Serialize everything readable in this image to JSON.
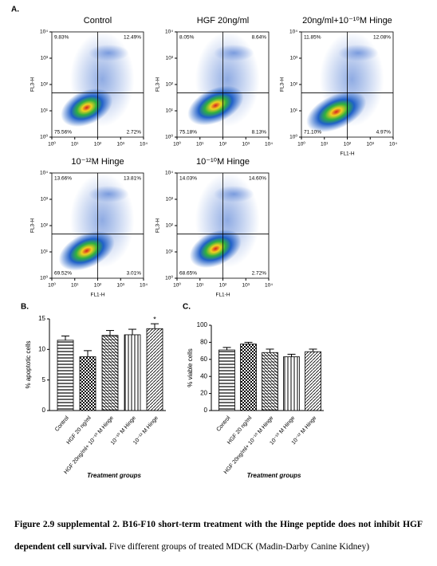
{
  "panel_a": {
    "label": "A.",
    "lim": [
      1,
      10000
    ],
    "log": true,
    "ticks": [
      {
        "value": 1,
        "label": "10⁰"
      },
      {
        "value": 10,
        "label": "10¹"
      },
      {
        "value": 100,
        "label": "10²"
      },
      {
        "value": 1000,
        "label": "10³"
      },
      {
        "value": 10000,
        "label": "10⁴"
      }
    ],
    "plots": [
      {
        "title": "Control",
        "ylabel": "FL3-H",
        "quadrants": [
          "9.83%",
          "12.49%",
          "75.56%",
          "2.72%"
        ]
      },
      {
        "title": "HGF 20ng/ml",
        "ylabel": "FL3-H",
        "quadrants": [
          "8.05%",
          "8.64%",
          "75.18%",
          "8.13%"
        ]
      },
      {
        "title": "20ng/ml+10⁻¹⁰M  Hinge",
        "ylabel": "FL3-H",
        "xlabel": "FL1-H",
        "quadrants": [
          "11.85%",
          "12.08%",
          "71.10%",
          "4.97%"
        ]
      },
      {
        "title": "10⁻¹²M Hinge",
        "ylabel": "FL3-H",
        "xlabel": "FL1-H",
        "quadrants": [
          "13.66%",
          "13.81%",
          "69.52%",
          "3.01%"
        ]
      },
      {
        "title": "10⁻¹⁰M Hinge",
        "ylabel": "FL3-H",
        "xlabel": "FL1-H",
        "quadrants": [
          "14.03%",
          "14.60%",
          "68.65%",
          "2.72%"
        ]
      }
    ]
  },
  "chart_data": [
    {
      "type": "bar",
      "label": "B.",
      "ylabel": "% apoptotic cells",
      "xlabel": "Treatment groups",
      "categories": [
        "Control",
        "HGF 20 ng/ml",
        "HGF 20ng/ml+ 10⁻¹⁰ M Hinge",
        "10⁻¹⁰ M Hinge",
        "10⁻¹² M Hinge"
      ],
      "values": [
        11.5,
        8.8,
        12.3,
        12.4,
        13.4
      ],
      "errors": [
        0.7,
        1.0,
        0.8,
        0.9,
        0.8
      ],
      "annotations": [
        {
          "text": "*",
          "index": 4
        }
      ],
      "ylim": [
        0,
        15
      ],
      "yticks": [
        0,
        5,
        10,
        15
      ]
    },
    {
      "type": "bar",
      "label": "C.",
      "ylabel": "% viable cells",
      "xlabel": "Treatment groups",
      "categories": [
        "Control",
        "HGF 20 ng/ml",
        "HGF 20ng/ml+ 10⁻¹⁰ M Hinge",
        "10⁻¹⁰ M Hinge",
        "10⁻¹² M Hinge"
      ],
      "values": [
        71,
        78,
        68,
        63,
        69
      ],
      "errors": [
        3,
        2,
        4,
        3,
        3
      ],
      "ylim": [
        0,
        100
      ],
      "yticks": [
        0,
        20,
        40,
        60,
        80,
        100
      ]
    }
  ],
  "caption": {
    "bold": "Figure 2.9 supplemental 2. B16-F10 short-term treatment with the Hinge peptide does not inhibit HGF dependent cell survival.",
    "text": "Five different groups of treated MDCK (Madin-Darby Canine Kidney)"
  }
}
